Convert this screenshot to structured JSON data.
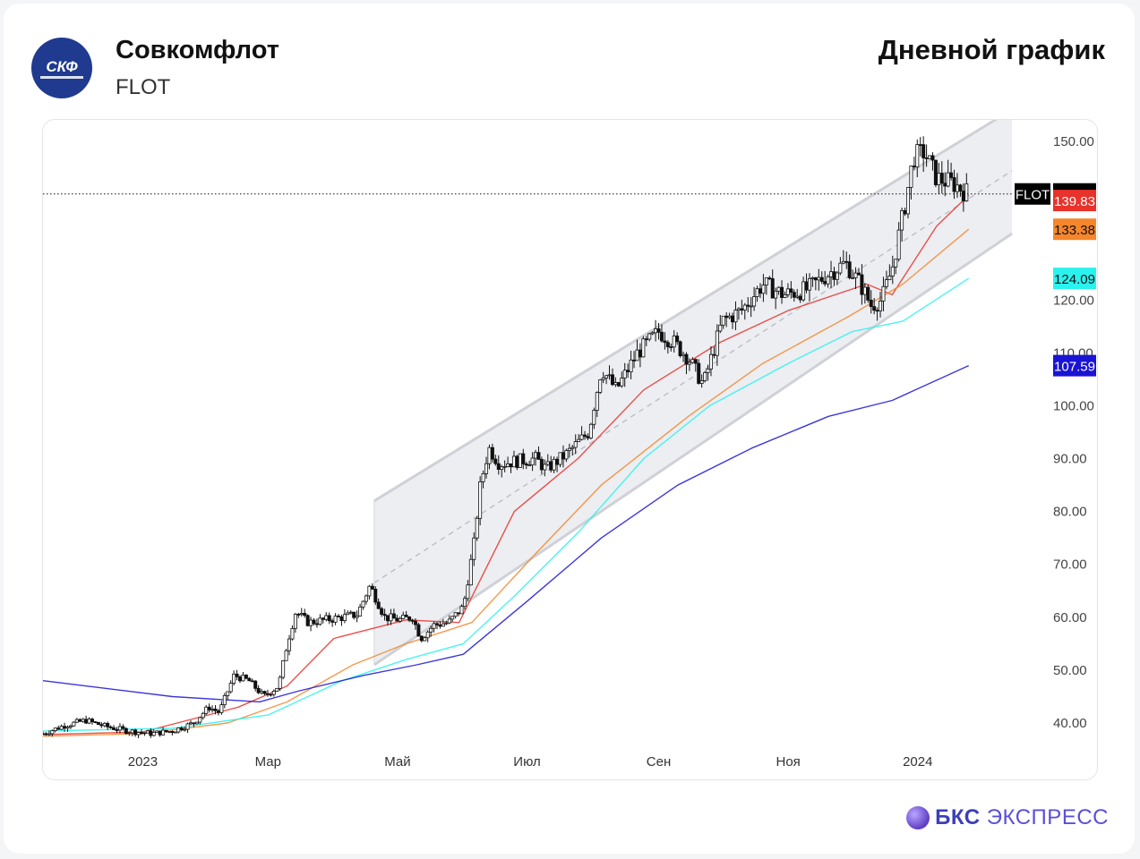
{
  "header": {
    "company": "Совкомфлот",
    "ticker": "FLOT",
    "logo_text": "СКФ",
    "chart_title": "Дневной график"
  },
  "footer": {
    "brand_bold": "БКС",
    "brand_rest": "ЭКСПРЕСС"
  },
  "chart_data": {
    "type": "candlestick",
    "ticker": "FLOT",
    "x_tick_labels": [
      {
        "label": "2023",
        "date": "2023-01-01"
      },
      {
        "label": "Мар",
        "date": "2023-03-01"
      },
      {
        "label": "Май",
        "date": "2023-05-01"
      },
      {
        "label": "Июл",
        "date": "2023-07-01"
      },
      {
        "label": "Сен",
        "date": "2023-09-01"
      },
      {
        "label": "Ноя",
        "date": "2023-11-01"
      },
      {
        "label": "2024",
        "date": "2024-01-01"
      }
    ],
    "x_range": [
      "2022-11-15",
      "2024-02-08"
    ],
    "y_range": [
      34.5,
      150
    ],
    "y_tick_labels": [
      "150.00",
      "120.00",
      "110.00",
      "100.00",
      "90.00",
      "80.00",
      "70.00",
      "60.00",
      "50.00",
      "40.00"
    ],
    "y_ticks": [
      150,
      120,
      110,
      100,
      90,
      80,
      70,
      60,
      50,
      40
    ],
    "last_price": {
      "label": "FLOT",
      "value": "140.06"
    },
    "price_labels": [
      {
        "value": "139.83",
        "color": "#e8322b"
      },
      {
        "value": "133.38",
        "color": "#f5862a"
      },
      {
        "value": "124.09",
        "color": "#2af2ee"
      },
      {
        "value": "107.59",
        "color": "#1a14d4"
      }
    ],
    "close": [
      [
        "2022-11-15",
        38
      ],
      [
        "2022-11-25",
        39.5
      ],
      [
        "2022-12-05",
        40.5
      ],
      [
        "2022-12-15",
        39.3
      ],
      [
        "2022-12-25",
        38.5
      ],
      [
        "2023-01-05",
        38
      ],
      [
        "2023-01-15",
        38.5
      ],
      [
        "2023-01-25",
        40
      ],
      [
        "2023-02-01",
        43
      ],
      [
        "2023-02-06",
        42
      ],
      [
        "2023-02-13",
        49
      ],
      [
        "2023-02-20",
        48
      ],
      [
        "2023-02-27",
        45
      ],
      [
        "2023-03-06",
        47
      ],
      [
        "2023-03-10",
        55
      ],
      [
        "2023-03-14",
        61
      ],
      [
        "2023-03-20",
        59
      ],
      [
        "2023-03-28",
        59.5
      ],
      [
        "2023-04-05",
        60
      ],
      [
        "2023-04-12",
        60.5
      ],
      [
        "2023-04-18",
        66
      ],
      [
        "2023-04-25",
        60
      ],
      [
        "2023-05-02",
        59.5
      ],
      [
        "2023-05-08",
        60
      ],
      [
        "2023-05-12",
        56
      ],
      [
        "2023-05-18",
        58.5
      ],
      [
        "2023-05-25",
        59
      ],
      [
        "2023-06-01",
        62
      ],
      [
        "2023-06-06",
        74
      ],
      [
        "2023-06-09",
        85
      ],
      [
        "2023-06-13",
        92
      ],
      [
        "2023-06-18",
        89
      ],
      [
        "2023-06-25",
        89.5
      ],
      [
        "2023-07-05",
        90
      ],
      [
        "2023-07-10",
        88
      ],
      [
        "2023-07-20",
        91
      ],
      [
        "2023-07-30",
        95
      ],
      [
        "2023-08-05",
        107
      ],
      [
        "2023-08-12",
        103
      ],
      [
        "2023-08-22",
        110
      ],
      [
        "2023-09-01",
        114
      ],
      [
        "2023-09-08",
        112
      ],
      [
        "2023-09-15",
        109
      ],
      [
        "2023-09-22",
        104
      ],
      [
        "2023-10-01",
        116
      ],
      [
        "2023-10-10",
        118
      ],
      [
        "2023-10-20",
        123
      ],
      [
        "2023-10-30",
        121
      ],
      [
        "2023-11-10",
        122
      ],
      [
        "2023-11-20",
        125
      ],
      [
        "2023-11-28",
        127
      ],
      [
        "2023-12-05",
        123
      ],
      [
        "2023-12-10",
        119
      ],
      [
        "2023-12-15",
        120
      ],
      [
        "2023-12-20",
        126
      ],
      [
        "2023-12-26",
        138
      ],
      [
        "2023-12-30",
        147
      ],
      [
        "2024-01-04",
        148
      ],
      [
        "2024-01-10",
        143
      ],
      [
        "2024-01-18",
        142
      ],
      [
        "2024-01-25",
        140.06
      ]
    ],
    "series": [
      {
        "name": "",
        "color": "#e8322b",
        "points": [
          [
            "2022-11-15",
            37.8
          ],
          [
            "2023-01-01",
            38.3
          ],
          [
            "2023-02-15",
            43
          ],
          [
            "2023-03-10",
            47
          ],
          [
            "2023-04-01",
            56
          ],
          [
            "2023-05-05",
            59.5
          ],
          [
            "2023-05-30",
            59
          ],
          [
            "2023-06-25",
            80
          ],
          [
            "2023-07-25",
            90
          ],
          [
            "2023-08-25",
            103
          ],
          [
            "2023-09-30",
            112
          ],
          [
            "2023-11-01",
            118
          ],
          [
            "2023-12-08",
            123
          ],
          [
            "2023-12-20",
            121
          ],
          [
            "2024-01-10",
            134
          ],
          [
            "2024-01-25",
            139.83
          ]
        ]
      },
      {
        "name": "",
        "color": "#f5862a",
        "points": [
          [
            "2022-11-15",
            37.5
          ],
          [
            "2023-01-01",
            38
          ],
          [
            "2023-02-10",
            40
          ],
          [
            "2023-03-10",
            44
          ],
          [
            "2023-04-10",
            51
          ],
          [
            "2023-05-05",
            55
          ],
          [
            "2023-06-05",
            59
          ],
          [
            "2023-07-05",
            72
          ],
          [
            "2023-08-05",
            85
          ],
          [
            "2023-09-15",
            98
          ],
          [
            "2023-10-20",
            108
          ],
          [
            "2023-11-30",
            117
          ],
          [
            "2023-12-25",
            123
          ],
          [
            "2024-01-25",
            133.38
          ]
        ]
      },
      {
        "name": "",
        "color": "#2af2ee",
        "points": [
          [
            "2022-11-15",
            38.5
          ],
          [
            "2023-01-15",
            39
          ],
          [
            "2023-03-01",
            41.5
          ],
          [
            "2023-04-05",
            48
          ],
          [
            "2023-05-05",
            52
          ],
          [
            "2023-06-01",
            55
          ],
          [
            "2023-06-25",
            64
          ],
          [
            "2023-07-25",
            76
          ],
          [
            "2023-08-25",
            90
          ],
          [
            "2023-09-25",
            100
          ],
          [
            "2023-11-01",
            108
          ],
          [
            "2023-12-01",
            114
          ],
          [
            "2023-12-25",
            116
          ],
          [
            "2024-01-25",
            124.09
          ]
        ]
      },
      {
        "name": "",
        "color": "#1a14d4",
        "points": [
          [
            "2022-11-15",
            48
          ],
          [
            "2023-01-15",
            45
          ],
          [
            "2023-02-25",
            44
          ],
          [
            "2023-03-15",
            46
          ],
          [
            "2023-04-15",
            49
          ],
          [
            "2023-05-10",
            51
          ],
          [
            "2023-06-01",
            53
          ],
          [
            "2023-07-01",
            63
          ],
          [
            "2023-08-05",
            75
          ],
          [
            "2023-09-10",
            85
          ],
          [
            "2023-10-15",
            92
          ],
          [
            "2023-11-20",
            98
          ],
          [
            "2023-12-20",
            101
          ],
          [
            "2024-01-25",
            107.59
          ]
        ]
      }
    ],
    "channel": {
      "upper": [
        [
          "2023-04-20",
          82
        ],
        [
          "2024-01-25",
          151
        ]
      ],
      "lower": [
        [
          "2023-04-20",
          51
        ],
        [
          "2024-02-05",
          130
        ]
      ],
      "mid": [
        [
          "2023-04-20",
          66.5
        ],
        [
          "2024-02-05",
          142
        ]
      ]
    }
  }
}
